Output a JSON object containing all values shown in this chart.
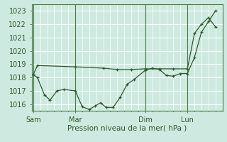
{
  "background_color": "#ceeae0",
  "grid_color": "#ffffff",
  "line_color": "#2d5a2d",
  "ylabel": "Pression niveau de la mer( hPa )",
  "ylim": [
    1015.5,
    1023.5
  ],
  "yticks": [
    1016,
    1017,
    1018,
    1019,
    1020,
    1021,
    1022,
    1023
  ],
  "xtick_labels": [
    "Sam",
    "Mar",
    "Dim",
    "Lun"
  ],
  "xtick_positions": [
    0,
    3,
    8,
    11
  ],
  "xlim": [
    -0.1,
    13.5
  ],
  "series1_x": [
    0,
    0.3,
    3,
    5,
    6,
    7,
    8,
    9,
    10,
    11,
    11.5,
    12,
    12.5,
    13
  ],
  "series1_y": [
    1018.2,
    1018.9,
    1018.8,
    1018.7,
    1018.6,
    1018.6,
    1018.65,
    1018.65,
    1018.65,
    1018.65,
    1021.3,
    1022.0,
    1022.5,
    1021.8
  ],
  "series2_x": [
    0,
    0.3,
    0.8,
    1.2,
    1.7,
    2.2,
    3.0,
    3.5,
    4.0,
    4.4,
    4.8,
    5.2,
    5.7,
    6.2,
    6.7,
    7.2,
    8.0,
    8.5,
    9.0,
    9.5,
    10.0,
    10.5,
    11.0,
    11.5,
    12.0,
    12.5,
    13.0
  ],
  "series2_y": [
    1018.2,
    1018.0,
    1016.7,
    1016.3,
    1017.0,
    1017.1,
    1017.0,
    1015.8,
    1015.6,
    1015.85,
    1016.1,
    1015.75,
    1015.75,
    1016.5,
    1017.5,
    1017.85,
    1018.55,
    1018.7,
    1018.6,
    1018.15,
    1018.1,
    1018.3,
    1018.3,
    1019.5,
    1021.4,
    1022.2,
    1023.0
  ],
  "vline_positions": [
    0,
    3,
    8,
    11
  ],
  "fontsize_label": 7.5,
  "fontsize_tick": 7
}
